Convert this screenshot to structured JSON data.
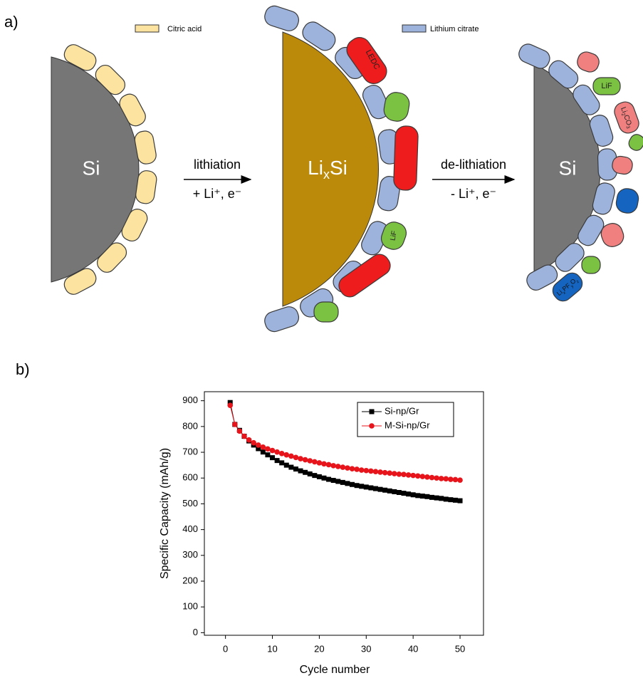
{
  "panel_labels": [
    "a)",
    "b)"
  ],
  "diagram": {
    "legend": [
      "Citric acid",
      "Lithium citrate"
    ],
    "core_labels": {
      "si_left": "Si",
      "lithiated": {
        "base": "Li",
        "sub": "x",
        "rest": "Si"
      },
      "si_right": "Si"
    },
    "arrows": [
      {
        "label": "lithiation",
        "sublabel": "+ Li⁺, e⁻"
      },
      {
        "label": "de-lithiation",
        "sublabel": "- Li⁺, e⁻"
      }
    ],
    "species": {
      "ledc": "LEDC",
      "lif_middle": "LiF",
      "lif_right": "LiF",
      "li2co3": [
        "Li",
        "2",
        "CO",
        "3"
      ],
      "lipfo": [
        "Li",
        "x",
        "PF",
        "y",
        "O",
        "z"
      ]
    }
  },
  "chart_data": {
    "type": "line",
    "x_label": "Cycle number",
    "y_label": "Specific Capacity (mAh/g)",
    "x": [
      1,
      2,
      3,
      4,
      5,
      6,
      7,
      8,
      9,
      10,
      11,
      12,
      13,
      14,
      15,
      16,
      17,
      18,
      19,
      20,
      21,
      22,
      23,
      24,
      25,
      26,
      27,
      28,
      29,
      30,
      31,
      32,
      33,
      34,
      35,
      36,
      37,
      38,
      39,
      40,
      41,
      42,
      43,
      44,
      45,
      46,
      47,
      48,
      49,
      50
    ],
    "series": [
      {
        "name": "Si-np/Gr",
        "color": "#000000",
        "marker": "square",
        "values": [
          893,
          808,
          785,
          762,
          744,
          728,
          714,
          701,
          690,
          679,
          668,
          659,
          650,
          642,
          635,
          628,
          622,
          616,
          610,
          605,
          600,
          595,
          591,
          587,
          583,
          579,
          575,
          571,
          568,
          565,
          562,
          559,
          556,
          553,
          550,
          547,
          544,
          541,
          538,
          535,
          532,
          530,
          528,
          525,
          523,
          521,
          518,
          516,
          514,
          512
        ]
      },
      {
        "name": "M-Si-np/Gr",
        "color": "#e8141b",
        "marker": "circle",
        "values": [
          882,
          808,
          782,
          762,
          748,
          737,
          728,
          720,
          713,
          707,
          701,
          695,
          690,
          685,
          680,
          675,
          671,
          667,
          663,
          659,
          655,
          652,
          648,
          645,
          642,
          639,
          636,
          634,
          631,
          629,
          627,
          625,
          623,
          621,
          619,
          617,
          615,
          614,
          612,
          610,
          608,
          606,
          604,
          602,
          600,
          598,
          597,
          595,
          594,
          592
        ]
      }
    ],
    "xlim": [
      -4.5,
      55
    ],
    "ylim": [
      -10,
      935
    ],
    "xticks": [
      0,
      10,
      20,
      30,
      40,
      50
    ],
    "yticks": [
      0,
      100,
      200,
      300,
      400,
      500,
      600,
      700,
      800,
      900
    ],
    "grid": false,
    "legend": "upper right"
  }
}
